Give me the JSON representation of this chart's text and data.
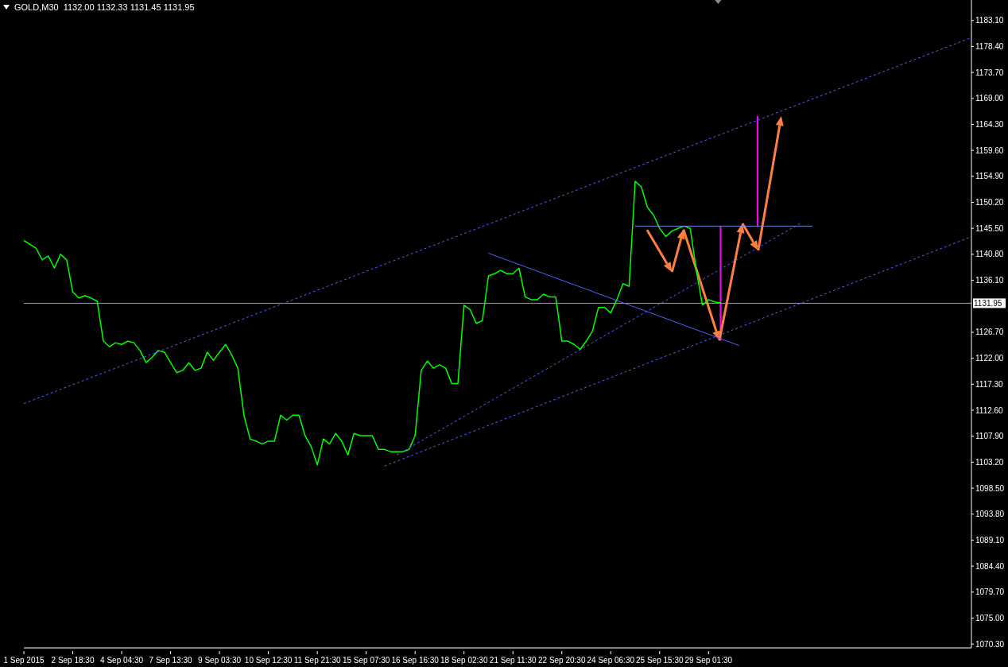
{
  "chart_data": {
    "type": "line",
    "title": "GOLD,M30",
    "subtitle": "1132.00 1132.33 1131.45 1131.95",
    "categories": [
      "1 Sep 2015",
      null,
      null,
      null,
      null,
      null,
      null,
      null,
      "2 Sep 18:30",
      null,
      null,
      null,
      null,
      null,
      null,
      null,
      "4 Sep 04:30",
      null,
      null,
      null,
      null,
      null,
      null,
      null,
      "7 Sep 13:30",
      null,
      null,
      null,
      null,
      null,
      null,
      null,
      "9 Sep 03:30",
      null,
      null,
      null,
      null,
      null,
      null,
      null,
      "10 Sep 12:30",
      null,
      null,
      null,
      null,
      null,
      null,
      null,
      "11 Sep 21:30",
      null,
      null,
      null,
      null,
      null,
      null,
      null,
      "15 Sep 07:30",
      null,
      null,
      null,
      null,
      null,
      null,
      null,
      "16 Sep 16:30",
      null,
      null,
      null,
      null,
      null,
      null,
      null,
      "18 Sep 02:30",
      null,
      null,
      null,
      null,
      null,
      null,
      null,
      "21 Sep 11:30",
      null,
      null,
      null,
      null,
      null,
      null,
      null,
      "22 Sep 20:30",
      null,
      null,
      null,
      null,
      null,
      null,
      null,
      "24 Sep 06:30",
      null,
      null,
      null,
      null,
      null,
      null,
      null,
      "25 Sep 15:30",
      null,
      null,
      null,
      null,
      null,
      null,
      null,
      "29 Sep 01:30",
      null,
      null,
      null,
      null,
      null,
      null,
      null,
      null,
      null,
      null,
      null,
      null,
      null,
      null,
      null,
      null,
      null,
      null,
      null,
      null,
      null,
      null,
      null,
      null,
      null,
      null,
      null,
      null,
      null,
      null,
      null,
      null,
      null,
      null,
      null,
      null,
      null,
      null,
      null,
      null,
      null,
      null,
      null
    ],
    "series": [
      {
        "color": "#00ff00",
        "values": [
          1143.3,
          1142.6,
          1141.9,
          1139.8,
          1140.5,
          1138.3,
          1140.8,
          1139.8,
          1134.0,
          1132.9,
          1133.3,
          1132.9,
          1132.3,
          1125.1,
          1124.1,
          1124.8,
          1124.5,
          1125.1,
          1124.8,
          1123.4,
          1121.2,
          1122.2,
          1123.4,
          1123.1,
          1121.2,
          1119.4,
          1119.8,
          1121.2,
          1119.8,
          1120.2,
          1123.1,
          1121.6,
          1123.1,
          1124.5,
          1122.6,
          1120.2,
          1111.7,
          1107.4,
          1107.0,
          1106.5,
          1107.0,
          1107.0,
          1111.7,
          1110.8,
          1111.7,
          1111.7,
          1108.0,
          1106.0,
          1102.7,
          1107.4,
          1106.5,
          1108.4,
          1107.0,
          1104.5,
          1108.4,
          1108.0,
          1108.0,
          1108.0,
          1105.5,
          1105.5,
          1105.1,
          1105.1,
          1105.1,
          1105.5,
          1108.0,
          1119.8,
          1121.5,
          1120.2,
          1120.8,
          1120.2,
          1117.4,
          1117.4,
          1131.6,
          1130.8,
          1128.3,
          1128.8,
          1136.9,
          1137.3,
          1137.9,
          1137.3,
          1137.3,
          1138.3,
          1133.1,
          1132.6,
          1132.6,
          1133.6,
          1133.1,
          1133.1,
          1125.1,
          1125.1,
          1124.5,
          1123.6,
          1125.1,
          1126.9,
          1131.2,
          1131.2,
          1130.2,
          1132.6,
          1135.5,
          1135.0,
          1154.0,
          1153.0,
          1149.3,
          1147.9,
          1145.5,
          1144.0,
          1145.0,
          1145.5,
          1145.9,
          1145.5,
          1137.9,
          1131.6,
          1132.6,
          1132.2,
          1132.0,
          null,
          null,
          null,
          null,
          null,
          null,
          null,
          null,
          null,
          null,
          null,
          null,
          null,
          null,
          null,
          null,
          null,
          null,
          null,
          null,
          null,
          null,
          null,
          null,
          null,
          null,
          null,
          null,
          null,
          null,
          null,
          null,
          null,
          null,
          null,
          null,
          null,
          null,
          null,
          null,
          null
        ]
      },
      {
        "color": "#4a62ff",
        "line_style": "dashed",
        "values": [
          1113.8,
          null,
          null,
          null,
          null,
          null,
          null,
          null,
          null,
          null,
          null,
          null,
          null,
          null,
          null,
          null,
          null,
          null,
          null,
          null,
          null,
          null,
          null,
          null,
          null,
          null,
          null,
          null,
          null,
          null,
          null,
          null,
          null,
          null,
          null,
          null,
          null,
          null,
          null,
          null,
          null,
          null,
          null,
          null,
          null,
          null,
          null,
          null,
          null,
          null,
          null,
          null,
          null,
          null,
          null,
          null,
          null,
          null,
          null,
          null,
          null,
          null,
          null,
          null,
          null,
          null,
          null,
          null,
          null,
          null,
          null,
          null,
          null,
          null,
          null,
          null,
          null,
          null,
          null,
          null,
          null,
          null,
          null,
          null,
          null,
          null,
          null,
          null,
          null,
          null,
          null,
          null,
          null,
          null,
          null,
          null,
          null,
          null,
          null,
          null,
          null,
          null,
          null,
          null,
          null,
          null,
          null,
          null,
          null,
          null,
          null,
          null,
          null,
          null,
          null,
          null,
          null,
          null,
          null,
          null,
          null,
          null,
          null,
          null,
          null,
          null,
          null,
          null,
          null,
          null,
          null,
          null,
          null,
          null,
          null,
          null,
          null,
          null,
          null,
          null,
          null,
          null,
          null,
          null,
          null,
          null,
          null,
          null,
          null,
          null,
          null,
          null,
          null,
          null,
          null,
          1180.0
        ]
      },
      {
        "color": "#4a62ff",
        "line_style": "dashed",
        "values": [
          null,
          null,
          null,
          null,
          null,
          null,
          null,
          null,
          null,
          null,
          null,
          null,
          null,
          null,
          null,
          null,
          null,
          null,
          null,
          null,
          null,
          null,
          null,
          null,
          null,
          null,
          null,
          null,
          null,
          null,
          null,
          null,
          null,
          null,
          null,
          null,
          null,
          null,
          null,
          null,
          null,
          null,
          null,
          null,
          null,
          null,
          null,
          null,
          null,
          null,
          null,
          null,
          null,
          null,
          null,
          null,
          null,
          null,
          null,
          1102.5,
          null,
          null,
          null,
          null,
          null,
          null,
          null,
          null,
          null,
          null,
          null,
          null,
          null,
          null,
          null,
          null,
          null,
          null,
          null,
          null,
          null,
          null,
          null,
          null,
          null,
          null,
          null,
          null,
          null,
          null,
          null,
          null,
          null,
          null,
          null,
          null,
          null,
          null,
          null,
          null,
          null,
          null,
          null,
          null,
          null,
          null,
          null,
          null,
          null,
          null,
          null,
          null,
          null,
          null,
          null,
          null,
          null,
          null,
          null,
          null,
          null,
          null,
          null,
          null,
          null,
          null,
          null,
          null,
          null,
          null,
          null,
          null,
          null,
          null,
          null,
          null,
          null,
          null,
          null,
          null,
          null,
          null,
          null,
          null,
          null,
          null,
          null,
          null,
          null,
          null,
          null,
          null,
          null,
          null,
          null,
          1144.0
        ]
      },
      {
        "color": "#4a62ff",
        "line_style": "dashed",
        "values": [
          null,
          null,
          null,
          null,
          null,
          null,
          null,
          null,
          null,
          null,
          null,
          null,
          null,
          null,
          null,
          null,
          null,
          null,
          null,
          null,
          null,
          null,
          null,
          null,
          null,
          null,
          null,
          null,
          null,
          null,
          null,
          null,
          null,
          null,
          null,
          null,
          null,
          null,
          null,
          null,
          null,
          null,
          null,
          null,
          null,
          null,
          null,
          null,
          null,
          null,
          null,
          null,
          null,
          null,
          null,
          null,
          null,
          null,
          null,
          null,
          null,
          1104.5,
          null,
          null,
          null,
          null,
          null,
          null,
          null,
          null,
          null,
          null,
          null,
          null,
          null,
          null,
          null,
          null,
          null,
          null,
          null,
          null,
          null,
          null,
          null,
          null,
          null,
          null,
          null,
          null,
          null,
          null,
          null,
          null,
          null,
          null,
          null,
          null,
          null,
          null,
          null,
          null,
          null,
          null,
          null,
          null,
          null,
          null,
          null,
          null,
          null,
          null,
          null,
          null,
          null,
          null,
          null,
          null,
          null,
          null,
          null,
          null,
          null,
          null,
          null,
          null,
          null,
          1146.4,
          null,
          null,
          null,
          null,
          null,
          null,
          null,
          null,
          null,
          null,
          null,
          null,
          null,
          null,
          null,
          null,
          null,
          null,
          null,
          null,
          null,
          null,
          null,
          null,
          null,
          null,
          null,
          null
        ]
      },
      {
        "color": "#4a62ff",
        "line_style": "solid",
        "values": [
          null,
          null,
          null,
          null,
          null,
          null,
          null,
          null,
          null,
          null,
          null,
          null,
          null,
          null,
          null,
          null,
          null,
          null,
          null,
          null,
          null,
          null,
          null,
          null,
          null,
          null,
          null,
          null,
          null,
          null,
          null,
          null,
          null,
          null,
          null,
          null,
          null,
          null,
          null,
          null,
          null,
          null,
          null,
          null,
          null,
          null,
          null,
          null,
          null,
          null,
          null,
          null,
          null,
          null,
          null,
          null,
          null,
          null,
          null,
          null,
          null,
          null,
          null,
          null,
          null,
          null,
          null,
          null,
          null,
          null,
          null,
          null,
          null,
          null,
          null,
          null,
          1141.0,
          null,
          null,
          null,
          null,
          null,
          null,
          null,
          null,
          null,
          null,
          null,
          null,
          null,
          null,
          null,
          null,
          null,
          null,
          null,
          null,
          null,
          null,
          null,
          null,
          null,
          null,
          null,
          null,
          null,
          null,
          null,
          null,
          null,
          null,
          null,
          null,
          null,
          null,
          null,
          null,
          1124.3,
          null,
          null,
          null,
          null,
          null,
          null,
          null,
          null,
          null,
          null,
          null,
          null,
          null,
          null,
          null,
          null,
          null,
          null,
          null,
          null,
          null,
          null,
          null,
          null,
          null,
          null,
          null,
          null,
          null,
          null,
          null,
          null,
          null,
          null,
          null,
          null,
          null,
          null
        ]
      },
      {
        "color": "#7586d6",
        "line_style": "solid",
        "values": [
          null,
          null,
          null,
          null,
          null,
          null,
          null,
          null,
          null,
          null,
          null,
          null,
          null,
          null,
          null,
          null,
          null,
          null,
          null,
          null,
          null,
          null,
          null,
          null,
          null,
          null,
          null,
          null,
          null,
          null,
          null,
          null,
          null,
          null,
          null,
          null,
          null,
          null,
          null,
          null,
          null,
          null,
          null,
          null,
          null,
          null,
          null,
          null,
          null,
          null,
          null,
          null,
          null,
          null,
          null,
          null,
          null,
          null,
          null,
          null,
          null,
          null,
          null,
          null,
          null,
          null,
          null,
          null,
          null,
          null,
          null,
          null,
          null,
          null,
          null,
          null,
          null,
          null,
          null,
          null,
          null,
          null,
          null,
          null,
          null,
          null,
          null,
          null,
          null,
          null,
          null,
          null,
          null,
          null,
          null,
          null,
          null,
          null,
          null,
          null,
          1145.9,
          null,
          null,
          null,
          null,
          null,
          null,
          null,
          null,
          null,
          null,
          null,
          null,
          null,
          null,
          null,
          null,
          null,
          null,
          null,
          null,
          null,
          null,
          null,
          null,
          null,
          null,
          null,
          null,
          1145.9,
          null,
          null,
          null,
          null,
          null,
          null,
          null,
          null,
          null,
          null,
          null,
          null,
          null,
          null,
          null,
          null,
          null,
          null,
          null,
          null,
          null,
          null,
          null,
          null,
          null,
          null
        ]
      }
    ],
    "ylim": [
      1069.6,
      1186.8
    ],
    "yticks": [
      {
        "value": 1070.3,
        "label": "1070.30"
      },
      {
        "value": 1075.0,
        "label": "1075.00"
      },
      {
        "value": 1079.7,
        "label": "1079.70"
      },
      {
        "value": 1084.4,
        "label": "1084.40"
      },
      {
        "value": 1089.1,
        "label": "1089.10"
      },
      {
        "value": 1093.8,
        "label": "1093.80"
      },
      {
        "value": 1098.5,
        "label": "1098.50"
      },
      {
        "value": 1103.2,
        "label": "1103.20"
      },
      {
        "value": 1107.9,
        "label": "1107.90"
      },
      {
        "value": 1112.6,
        "label": "1112.60"
      },
      {
        "value": 1117.3,
        "label": "1117.30"
      },
      {
        "value": 1122.0,
        "label": "1122.00"
      },
      {
        "value": 1126.7,
        "label": "1126.70"
      },
      {
        "value": 1136.1,
        "label": "1136.10"
      },
      {
        "value": 1140.8,
        "label": "1140.80"
      },
      {
        "value": 1145.5,
        "label": "1145.50"
      },
      {
        "value": 1150.2,
        "label": "1150.20"
      },
      {
        "value": 1154.9,
        "label": "1154.90"
      },
      {
        "value": 1159.6,
        "label": "1159.60"
      },
      {
        "value": 1164.3,
        "label": "1164.30"
      },
      {
        "value": 1169.0,
        "label": "1169.00"
      },
      {
        "value": 1173.7,
        "label": "1173.70"
      },
      {
        "value": 1178.4,
        "label": "1178.40"
      },
      {
        "value": 1183.1,
        "label": "1183.10"
      }
    ],
    "ref_lines": [
      {
        "axis": "y",
        "value": 1131.95,
        "label": "1131.95",
        "color": "#a0a0a0"
      }
    ],
    "marker": "none"
  }
}
